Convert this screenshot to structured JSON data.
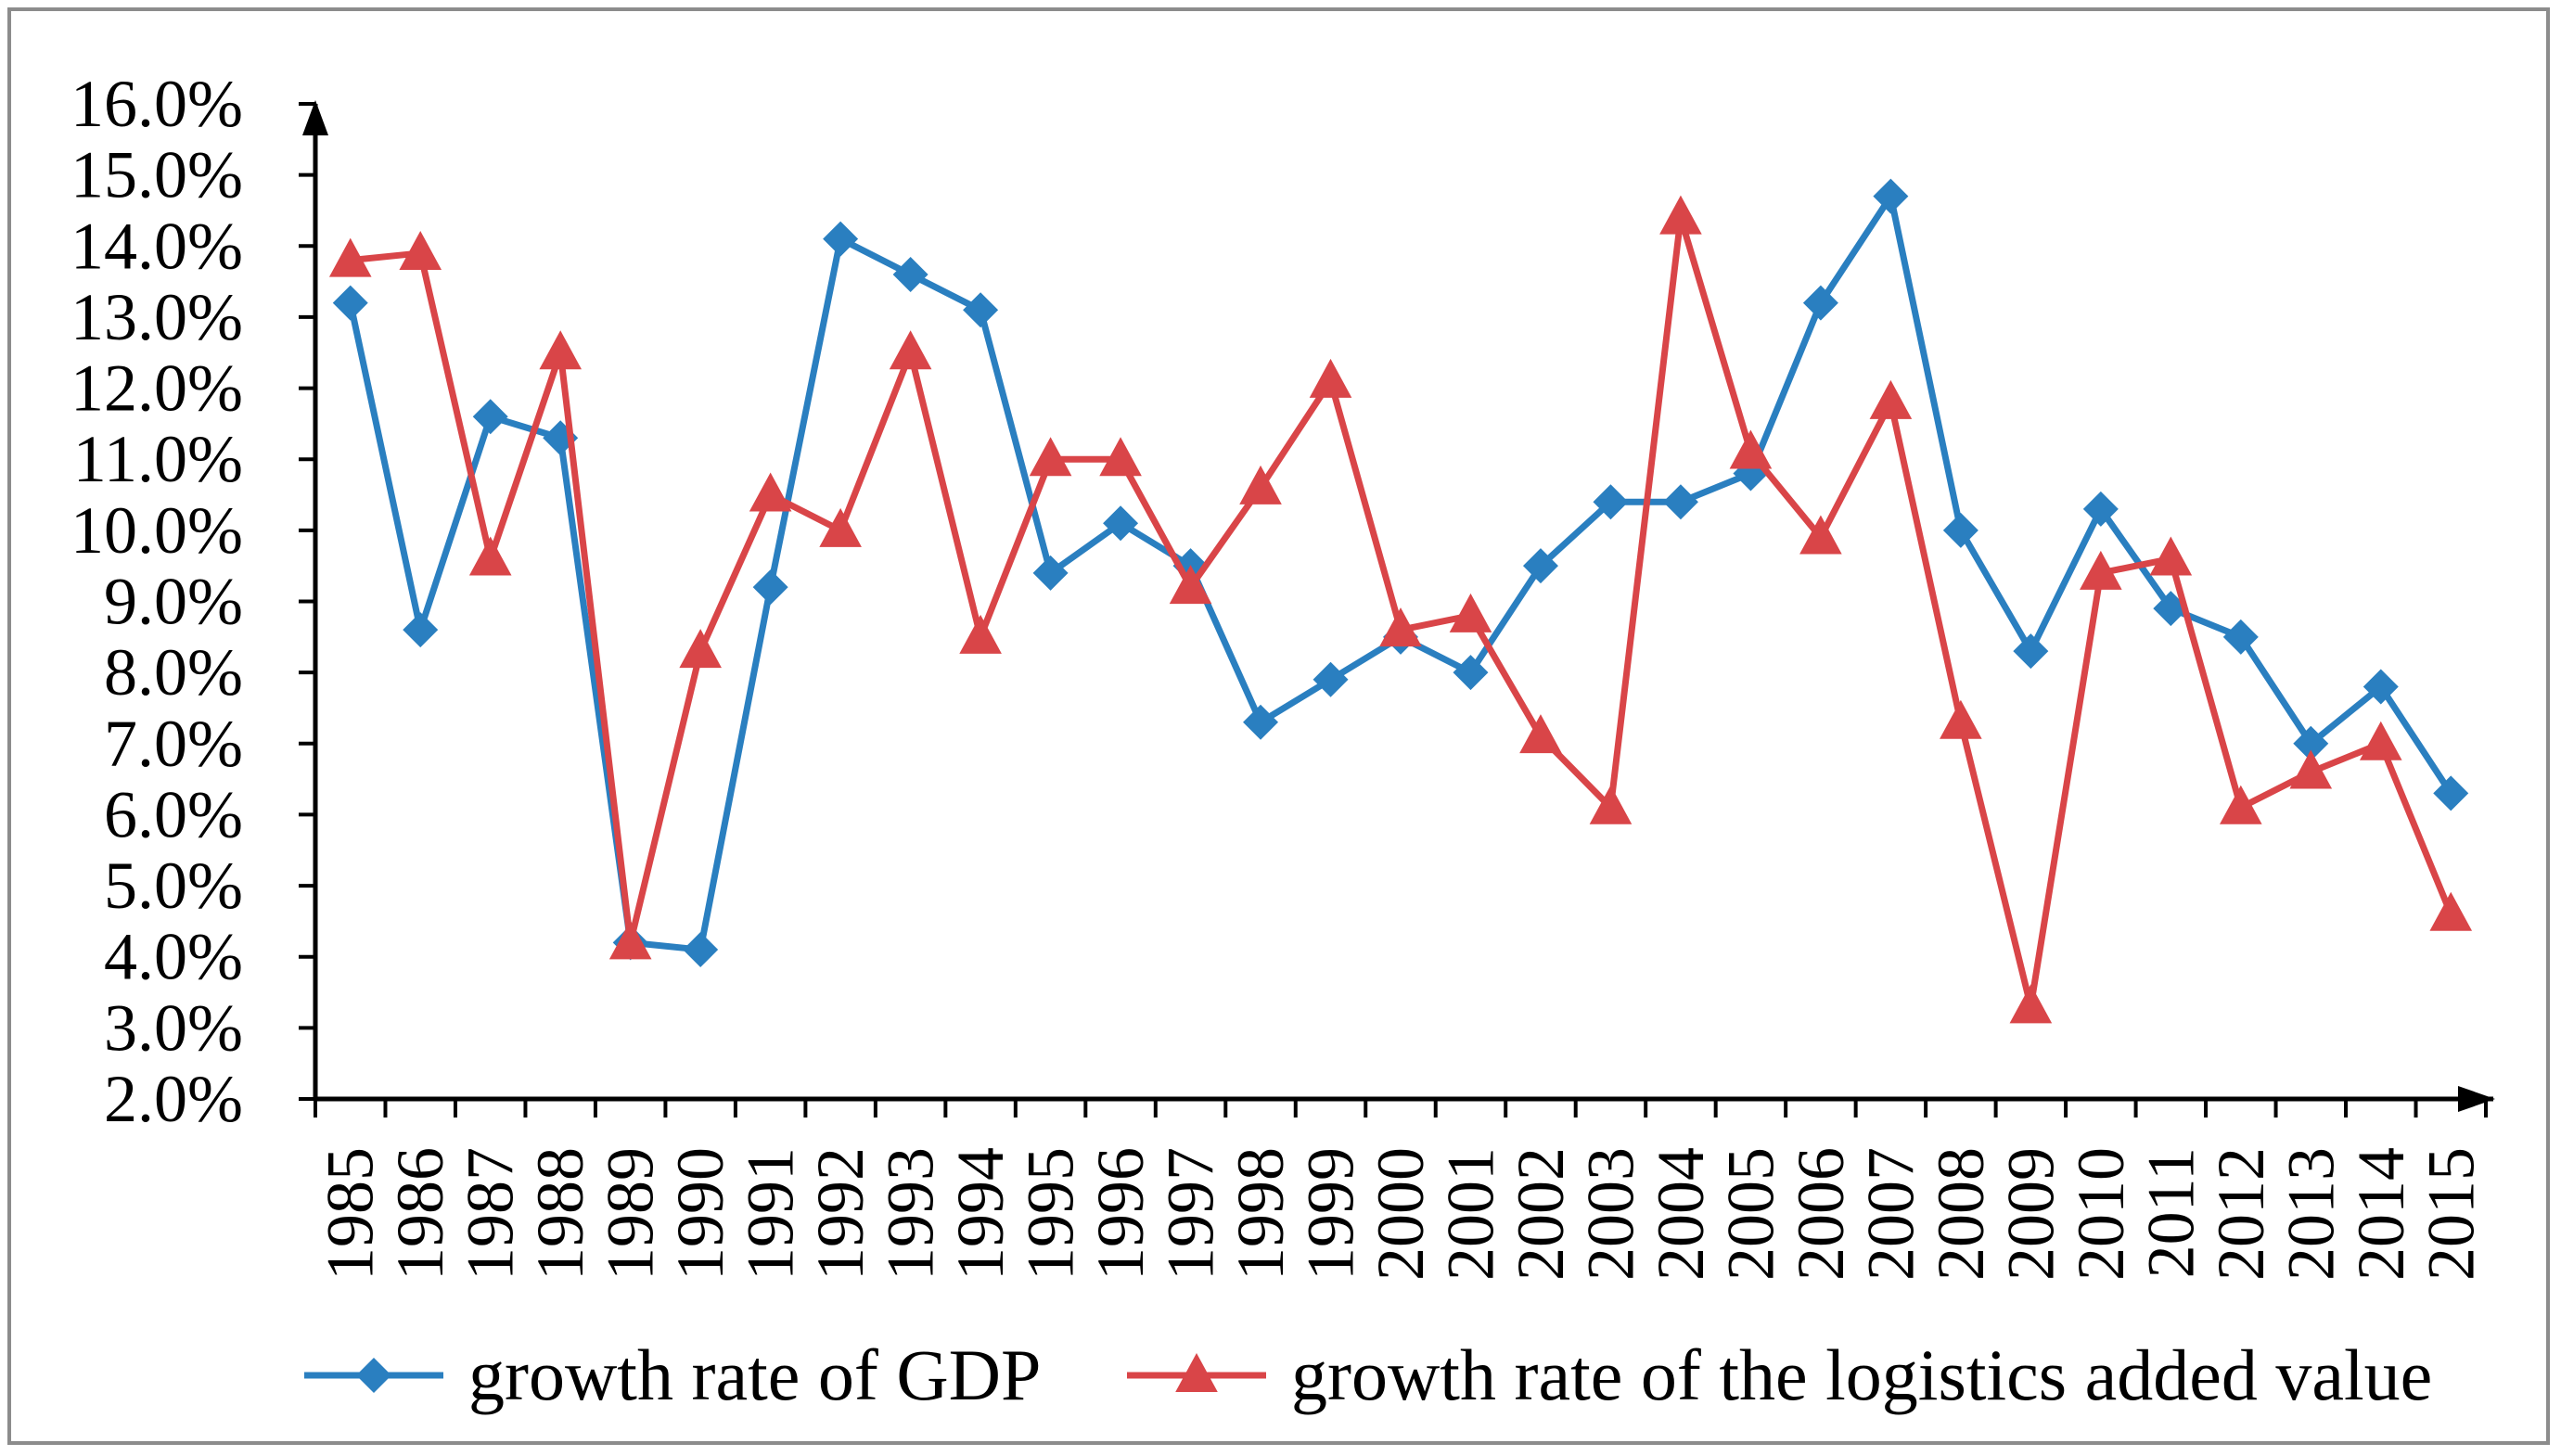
{
  "chart_data": {
    "type": "line",
    "title": "",
    "xlabel": "",
    "ylabel": "",
    "ylim": [
      2.0,
      16.0
    ],
    "y_ticks": [
      "2.0%",
      "3.0%",
      "4.0%",
      "5.0%",
      "6.0%",
      "7.0%",
      "8.0%",
      "9.0%",
      "10.0%",
      "11.0%",
      "12.0%",
      "13.0%",
      "14.0%",
      "15.0%",
      "16.0%"
    ],
    "categories": [
      "1985",
      "1986",
      "1987",
      "1988",
      "1989",
      "1990",
      "1991",
      "1992",
      "1993",
      "1994",
      "1995",
      "1996",
      "1997",
      "1998",
      "1999",
      "2000",
      "2001",
      "2002",
      "2003",
      "2004",
      "2005",
      "2006",
      "2007",
      "2008",
      "2009",
      "2010",
      "2011",
      "2012",
      "2013",
      "2014",
      "2015"
    ],
    "series": [
      {
        "name": "growth rate of GDP",
        "color": "#2a7fc0",
        "marker": "diamond",
        "values": [
          13.2,
          8.6,
          11.6,
          11.3,
          4.2,
          4.1,
          9.2,
          14.1,
          13.6,
          13.1,
          9.4,
          10.1,
          9.5,
          7.3,
          7.9,
          8.5,
          8.0,
          9.5,
          10.4,
          10.4,
          10.8,
          13.2,
          14.7,
          10.0,
          8.3,
          10.3,
          8.9,
          8.5,
          7.0,
          7.8,
          6.3
        ]
      },
      {
        "name": "growth rate of the logistics added value",
        "color": "#d94548",
        "marker": "triangle",
        "values": [
          13.8,
          13.9,
          9.6,
          12.5,
          4.2,
          8.3,
          10.5,
          10.0,
          12.5,
          8.5,
          11.0,
          11.0,
          9.2,
          10.6,
          12.1,
          8.6,
          8.8,
          7.1,
          6.1,
          14.4,
          11.1,
          9.9,
          11.8,
          7.3,
          3.3,
          9.4,
          9.6,
          6.1,
          6.6,
          7.0,
          4.6
        ]
      }
    ],
    "legend_position": "bottom",
    "grid": false
  }
}
